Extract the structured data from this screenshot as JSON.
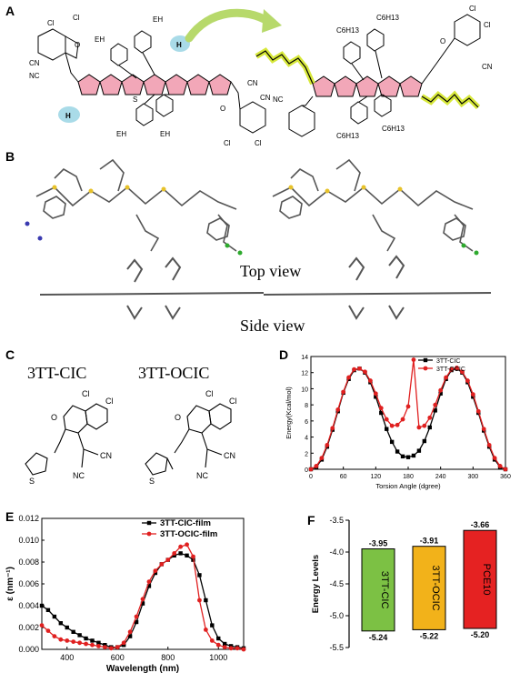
{
  "panels": {
    "A": "A",
    "B": "B",
    "C": "C",
    "D": "D",
    "E": "E",
    "F": "F"
  },
  "panel_a": {
    "left_labels": {
      "cl1": "Cl",
      "cl2": "Cl",
      "cn1": "CN",
      "cn2": "NC",
      "o": "O",
      "eh1": "EH",
      "eh2": "EH",
      "eh3": "EH",
      "eh4": "EH",
      "h1": "H",
      "h2": "H",
      "s": "S",
      "cn3": "CN",
      "cn4": "CN",
      "o2": "O",
      "cl3": "Cl",
      "cl4": "Cl"
    },
    "right_labels": {
      "c6h13": "C6H13",
      "cl1": "Cl",
      "cl2": "Cl",
      "cn": "CN",
      "nc": "NC",
      "o": "O"
    }
  },
  "panel_b": {
    "top_view": "Top view",
    "side_view": "Side view"
  },
  "panel_c": {
    "name1": "3TT-CIC",
    "name2": "3TT-OCIC",
    "atoms": {
      "cl": "Cl",
      "o": "O",
      "cn": "CN",
      "nc": "NC",
      "s": "S"
    }
  },
  "chart_data": [
    {
      "panel": "D",
      "type": "line",
      "xlabel": "Torsion Angle (dgree)",
      "ylabel": "Energy(Kcal/mol)",
      "xlim": [
        0,
        360
      ],
      "ylim": [
        0,
        14
      ],
      "xticks": [
        0,
        60,
        120,
        180,
        240,
        300,
        360
      ],
      "yticks": [
        0,
        2,
        4,
        6,
        8,
        10,
        12,
        14
      ],
      "legend": "top-right",
      "series": [
        {
          "name": "3TT-CIC",
          "color": "#000000",
          "marker": "square",
          "x": [
            0,
            10,
            20,
            30,
            40,
            50,
            60,
            70,
            80,
            90,
            100,
            110,
            120,
            130,
            140,
            150,
            160,
            170,
            180,
            190,
            200,
            210,
            220,
            230,
            240,
            250,
            260,
            270,
            280,
            290,
            300,
            310,
            320,
            330,
            340,
            350,
            360
          ],
          "y": [
            0.0,
            0.3,
            1.2,
            2.8,
            4.9,
            7.2,
            9.5,
            11.2,
            12.3,
            12.5,
            12.0,
            10.8,
            9.0,
            7.0,
            5.0,
            3.4,
            2.2,
            1.6,
            1.5,
            1.7,
            2.3,
            3.5,
            5.2,
            7.3,
            9.4,
            11.2,
            12.3,
            12.5,
            12.0,
            10.8,
            9.0,
            7.0,
            4.8,
            2.8,
            1.2,
            0.3,
            0.0
          ]
        },
        {
          "name": "3TT-OCIC",
          "color": "#e02020",
          "marker": "circle",
          "x": [
            0,
            10,
            20,
            30,
            40,
            50,
            60,
            70,
            80,
            90,
            100,
            110,
            120,
            130,
            140,
            150,
            160,
            170,
            180,
            190,
            200,
            210,
            220,
            230,
            240,
            250,
            260,
            270,
            280,
            290,
            300,
            310,
            320,
            330,
            340,
            350,
            360
          ],
          "y": [
            0.0,
            0.4,
            1.4,
            3.0,
            5.1,
            7.4,
            9.6,
            11.4,
            12.4,
            12.5,
            12.1,
            11.0,
            9.4,
            7.6,
            6.2,
            5.4,
            5.5,
            6.2,
            7.8,
            13.6,
            5.2,
            5.4,
            6.4,
            8.0,
            9.8,
            11.4,
            12.4,
            12.6,
            12.1,
            11.0,
            9.3,
            7.2,
            5.0,
            3.0,
            1.4,
            0.4,
            0.0
          ]
        }
      ]
    },
    {
      "panel": "E",
      "type": "line",
      "xlabel": "Wavelength (nm)",
      "ylabel": "ε (nm⁻¹)",
      "xlim": [
        300,
        1100
      ],
      "ylim": [
        0,
        0.012
      ],
      "xticks": [
        400,
        600,
        800,
        1000
      ],
      "yticks": [
        0.0,
        0.002,
        0.004,
        0.006,
        0.008,
        0.01,
        0.012
      ],
      "ytick_labels": [
        "0.000",
        "0.002",
        "0.004",
        "0.006",
        "0.008",
        "0.010",
        "0.012"
      ],
      "legend": "top-right",
      "series": [
        {
          "name": "3TT-CIC-film",
          "color": "#000000",
          "marker": "square",
          "x": [
            300,
            325,
            350,
            375,
            400,
            425,
            450,
            475,
            500,
            525,
            550,
            575,
            600,
            625,
            650,
            675,
            700,
            725,
            750,
            775,
            800,
            825,
            850,
            875,
            900,
            925,
            950,
            975,
            1000,
            1025,
            1050,
            1075,
            1100
          ],
          "y": [
            0.004,
            0.0036,
            0.003,
            0.0024,
            0.002,
            0.0016,
            0.0013,
            0.001,
            0.0008,
            0.0006,
            0.0004,
            0.0002,
            0.0002,
            0.0004,
            0.0012,
            0.0025,
            0.0042,
            0.0058,
            0.007,
            0.0078,
            0.0082,
            0.0086,
            0.0088,
            0.0086,
            0.0082,
            0.0068,
            0.0045,
            0.0022,
            0.001,
            0.0005,
            0.0003,
            0.0002,
            0.0001
          ]
        },
        {
          "name": "3TT-OCIC-film",
          "color": "#e02020",
          "marker": "circle",
          "x": [
            300,
            325,
            350,
            375,
            400,
            425,
            450,
            475,
            500,
            525,
            550,
            575,
            600,
            625,
            650,
            675,
            700,
            725,
            750,
            775,
            800,
            825,
            850,
            875,
            900,
            925,
            950,
            975,
            1000,
            1025,
            1050,
            1075,
            1100
          ],
          "y": [
            0.0022,
            0.0017,
            0.0012,
            0.0009,
            0.0008,
            0.0007,
            0.0006,
            0.0005,
            0.0004,
            0.0003,
            0.0002,
            0.0001,
            0.0002,
            0.0006,
            0.0016,
            0.003,
            0.0046,
            0.0062,
            0.0072,
            0.0078,
            0.0082,
            0.0088,
            0.0094,
            0.0096,
            0.0085,
            0.0045,
            0.0018,
            0.0008,
            0.0004,
            0.0002,
            0.0001,
            0.0001,
            0.0
          ]
        }
      ]
    },
    {
      "panel": "F",
      "type": "bar",
      "ylabel": "Energy Levels",
      "ylim": [
        -5.5,
        -3.5
      ],
      "yticks": [
        -3.5,
        -4.0,
        -4.5,
        -5.0,
        -5.5
      ],
      "ytick_labels": [
        "-3.5",
        "-4.0",
        "-4.5",
        "-5.0",
        "-5.5"
      ],
      "bars": [
        {
          "name": "3TT-CIC",
          "lumo": -3.95,
          "homo": -5.24,
          "lumo_label": "-3.95",
          "homo_label": "-5.24",
          "color": "#7cc144"
        },
        {
          "name": "3TT-OCIC",
          "lumo": -3.91,
          "homo": -5.22,
          "lumo_label": "-3.91",
          "homo_label": "-5.22",
          "color": "#f2b21a"
        },
        {
          "name": "PCE10",
          "lumo": -3.66,
          "homo": -5.2,
          "lumo_label": "-3.66",
          "homo_label": "-5.20",
          "color": "#e52222"
        }
      ]
    }
  ]
}
